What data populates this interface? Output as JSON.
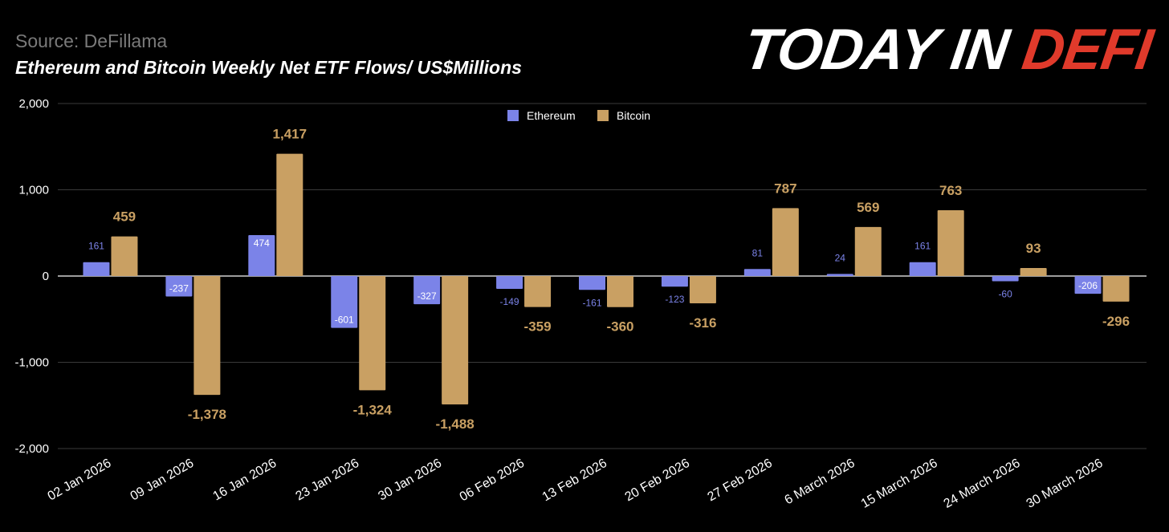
{
  "header": {
    "source": "Source: DeFillama",
    "title": "Ethereum and Bitcoin Weekly Net ETF Flows/ US$Millions",
    "brand_white": "TODAY IN ",
    "brand_red": "DEFI"
  },
  "chart_data": {
    "type": "bar",
    "title": "Ethereum and Bitcoin Weekly Net ETF Flows/ US$Millions",
    "xlabel": "",
    "ylabel": "",
    "ylim": [
      -2000,
      2000
    ],
    "yticks": [
      2000,
      1000,
      0,
      -1000,
      -2000
    ],
    "ytick_labels": [
      "2,000",
      "1,000",
      "0",
      "-1,000",
      "-2,000"
    ],
    "grid": true,
    "legend": "top-center",
    "categories": [
      "02 Jan 2026",
      "09 Jan 2026",
      "16 Jan 2026",
      "23 Jan 2026",
      "30 Jan 2026",
      "06 Feb 2026",
      "13 Feb 2026",
      "20 Feb 2026",
      "27 Feb 2026",
      "6 March 2026",
      "15 March 2026",
      "24 March 2026",
      "30 March 2026"
    ],
    "series": [
      {
        "name": "Ethereum",
        "color": "#7b83e8",
        "values": [
          161,
          -237,
          474,
          -601,
          -327,
          -149,
          -161,
          -123,
          81,
          24,
          161,
          -60,
          -206
        ],
        "labels": [
          "161",
          "-237",
          "474",
          "-601",
          "-327",
          "-149",
          "-161",
          "-123",
          "81",
          "24",
          "161",
          "-60",
          "-206"
        ]
      },
      {
        "name": "Bitcoin",
        "color": "#c9a063",
        "values": [
          459,
          -1378,
          1417,
          -1324,
          -1488,
          -359,
          -360,
          -316,
          787,
          569,
          763,
          93,
          -296
        ],
        "labels": [
          "459",
          "-1,378",
          "1,417",
          "-1,324",
          "-1,488",
          "-359",
          "-360",
          "-316",
          "787",
          "569",
          "763",
          "93",
          "-296"
        ]
      }
    ]
  }
}
